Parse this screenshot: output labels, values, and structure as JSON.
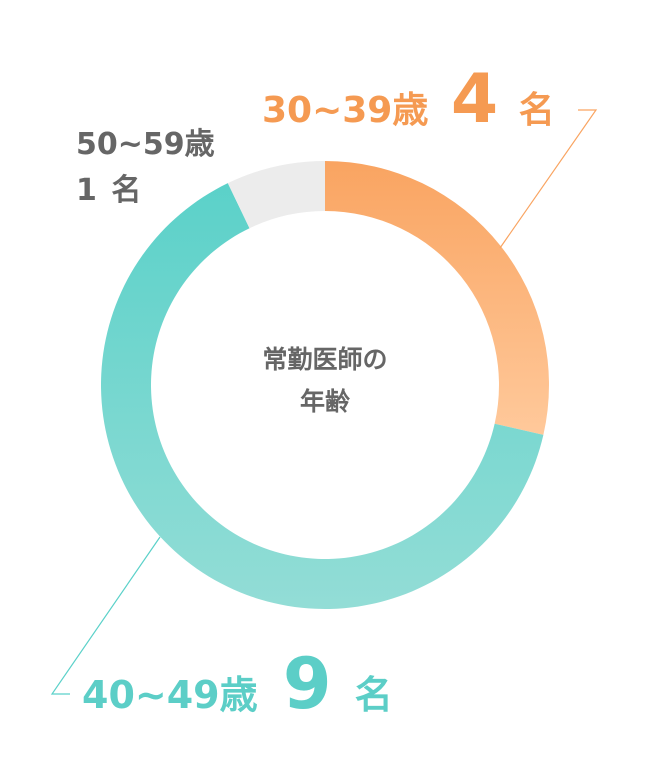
{
  "chart_data": {
    "type": "pie",
    "title": "常勤医師の年齢",
    "title_lines": [
      "常勤医師の",
      "年齢"
    ],
    "unit": "名",
    "slices": [
      {
        "label": "30~39歳",
        "value": 4,
        "color_start": "#f9a461",
        "color_end": "#ffc99b"
      },
      {
        "label": "40~49歳",
        "value": 9,
        "color_start": "#5bd1c9",
        "color_end": "#93ddd6"
      },
      {
        "label": "50~59歳",
        "value": 1,
        "color_start": "#ececec",
        "color_end": "#ececec"
      }
    ],
    "center_text_color": "#666666",
    "label_colors": {
      "30~39歳": "#f59a52",
      "40~49歳": "#5ccec7",
      "50~59歳": "#666666"
    }
  }
}
